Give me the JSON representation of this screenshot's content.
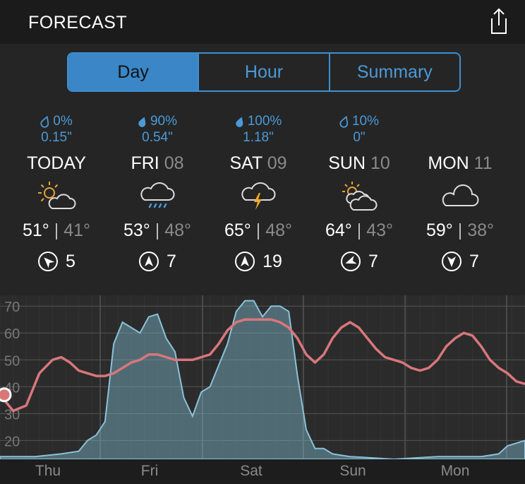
{
  "header": {
    "title": "FORECAST"
  },
  "tabs": [
    {
      "label": "Day",
      "active": true
    },
    {
      "label": "Hour",
      "active": false
    },
    {
      "label": "Summary",
      "active": false
    }
  ],
  "days": [
    {
      "precip": "0%",
      "amount": "0.15\"",
      "name": "TODAY",
      "num": "",
      "icon": "partly-sunny-icon",
      "high": "51°",
      "low": "41°",
      "wind": "5",
      "wind_dir": 135
    },
    {
      "precip": "90%",
      "amount": "0.54\"",
      "name": "FRI",
      "num": "08",
      "icon": "rain-cloud-icon",
      "high": "53°",
      "low": "48°",
      "wind": "7",
      "wind_dir": 0
    },
    {
      "precip": "100%",
      "amount": "1.18\"",
      "name": "SAT",
      "num": "09",
      "icon": "thunderstorm-icon",
      "high": "65°",
      "low": "48°",
      "wind": "19",
      "wind_dir": 0
    },
    {
      "precip": "10%",
      "amount": "0\"",
      "name": "SUN",
      "num": "10",
      "icon": "partly-cloudy-icon",
      "high": "64°",
      "low": "43°",
      "wind": "7",
      "wind_dir": 110
    },
    {
      "precip": "",
      "amount": "",
      "name": "MON",
      "num": "11",
      "icon": "cloud-icon",
      "high": "59°",
      "low": "38°",
      "wind": "7",
      "wind_dir": 180
    }
  ],
  "chart_data": {
    "type": "line",
    "x_labels": [
      "Thu",
      "Fri",
      "Sat",
      "Sun",
      "Mon"
    ],
    "y_ticks": [
      20,
      30,
      40,
      50,
      60,
      70
    ],
    "ylim": [
      13,
      74
    ],
    "xlim": [
      0,
      120
    ],
    "colors": {
      "temp": "#d9777b",
      "precip": "#7fb7cf"
    },
    "series": [
      {
        "values": [
          [
            0,
            37
          ],
          [
            3,
            31
          ],
          [
            6,
            33
          ],
          [
            9,
            45
          ],
          [
            12,
            50
          ],
          [
            14,
            51
          ],
          [
            16,
            49
          ],
          [
            18,
            46
          ],
          [
            20,
            45
          ],
          [
            22,
            44
          ],
          [
            24,
            44
          ],
          [
            26,
            45
          ],
          [
            28,
            47
          ],
          [
            30,
            49
          ],
          [
            32,
            50
          ],
          [
            34,
            52
          ],
          [
            36,
            52
          ],
          [
            38,
            51
          ],
          [
            40,
            50
          ],
          [
            42,
            50
          ],
          [
            44,
            50
          ],
          [
            46,
            51
          ],
          [
            48,
            52
          ],
          [
            50,
            56
          ],
          [
            52,
            61
          ],
          [
            54,
            64
          ],
          [
            56,
            65
          ],
          [
            58,
            65
          ],
          [
            60,
            65
          ],
          [
            62,
            65
          ],
          [
            64,
            64
          ],
          [
            66,
            62
          ],
          [
            68,
            58
          ],
          [
            70,
            52
          ],
          [
            72,
            49
          ],
          [
            74,
            52
          ],
          [
            76,
            58
          ],
          [
            78,
            62
          ],
          [
            80,
            64
          ],
          [
            82,
            62
          ],
          [
            84,
            58
          ],
          [
            86,
            54
          ],
          [
            88,
            51
          ],
          [
            90,
            50
          ],
          [
            92,
            49
          ],
          [
            94,
            47
          ],
          [
            96,
            46
          ],
          [
            98,
            47
          ],
          [
            100,
            50
          ],
          [
            102,
            55
          ],
          [
            104,
            58
          ],
          [
            106,
            60
          ],
          [
            108,
            59
          ],
          [
            110,
            55
          ],
          [
            112,
            50
          ],
          [
            114,
            47
          ],
          [
            116,
            45
          ],
          [
            118,
            42
          ],
          [
            120,
            41
          ]
        ]
      },
      {
        "values": [
          [
            0,
            14
          ],
          [
            8,
            14
          ],
          [
            14,
            15
          ],
          [
            18,
            16
          ],
          [
            20,
            20
          ],
          [
            22,
            22
          ],
          [
            24,
            27
          ],
          [
            26,
            56
          ],
          [
            28,
            64
          ],
          [
            30,
            62
          ],
          [
            32,
            60
          ],
          [
            34,
            66
          ],
          [
            36,
            67
          ],
          [
            38,
            58
          ],
          [
            40,
            53
          ],
          [
            42,
            36
          ],
          [
            44,
            29
          ],
          [
            46,
            38
          ],
          [
            48,
            40
          ],
          [
            50,
            48
          ],
          [
            52,
            56
          ],
          [
            54,
            68
          ],
          [
            56,
            72
          ],
          [
            58,
            72
          ],
          [
            60,
            66
          ],
          [
            62,
            70
          ],
          [
            64,
            70
          ],
          [
            66,
            68
          ],
          [
            68,
            44
          ],
          [
            70,
            24
          ],
          [
            72,
            17
          ],
          [
            74,
            17
          ],
          [
            76,
            15
          ],
          [
            80,
            14
          ],
          [
            90,
            13
          ],
          [
            100,
            14
          ],
          [
            110,
            14
          ],
          [
            114,
            15
          ],
          [
            116,
            18
          ],
          [
            118,
            19
          ],
          [
            120,
            20
          ]
        ]
      }
    ],
    "current_x": 0,
    "current_y": 37
  }
}
